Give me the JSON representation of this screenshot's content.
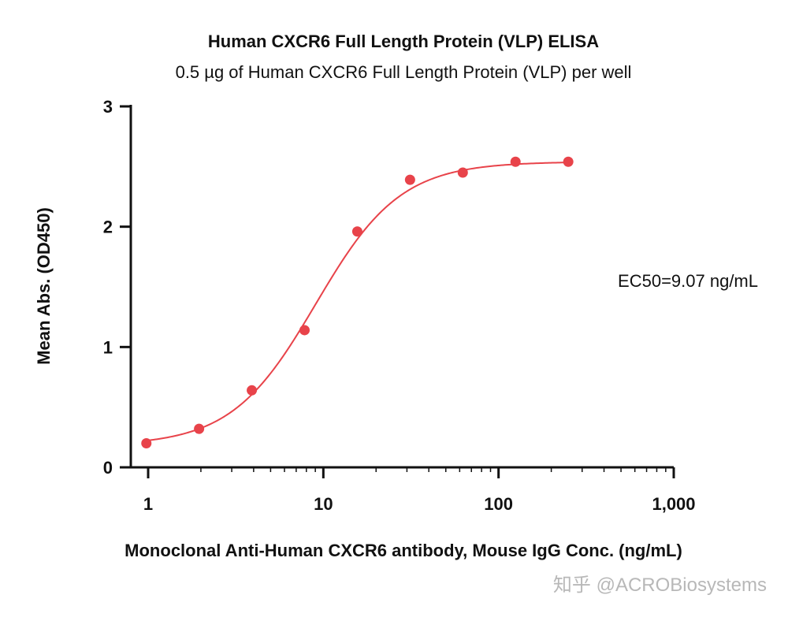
{
  "chart_data": {
    "type": "scatter",
    "title": "Human CXCR6 Full Length Protein (VLP) ELISA",
    "subtitle": "0.5 µg of Human CXCR6 Full Length Protein (VLP) per well",
    "xlabel": "Monoclonal Anti-Human CXCR6 antibody, Mouse IgG Conc. (ng/mL)",
    "ylabel": "Mean Abs. (OD450)",
    "xscale": "log",
    "xlim": [
      1,
      1000
    ],
    "ylim": [
      0,
      3
    ],
    "xticks": [
      1,
      10,
      100,
      1000
    ],
    "xtick_labels": [
      "1",
      "10",
      "100",
      "1,000"
    ],
    "yticks": [
      0,
      1,
      2,
      3
    ],
    "ytick_labels": [
      "0",
      "1",
      "2",
      "3"
    ],
    "grid": false,
    "series": [
      {
        "name": "Human CXCR6 Full Length Protein (VLP)",
        "color": "#e8434a",
        "x": [
          0.977,
          1.953,
          3.906,
          7.813,
          15.625,
          31.25,
          62.5,
          125,
          250
        ],
        "y": [
          0.2,
          0.32,
          0.64,
          1.14,
          1.96,
          2.39,
          2.45,
          2.54,
          2.54
        ]
      }
    ],
    "fit": {
      "model": "4PL",
      "bottom": 0.18,
      "top": 2.54,
      "ec50": 9.07,
      "hill": 1.8,
      "color": "#e8434a"
    },
    "annotation": "EC50=9.07 ng/mL"
  },
  "watermark": "知乎 @ACROBiosystems"
}
